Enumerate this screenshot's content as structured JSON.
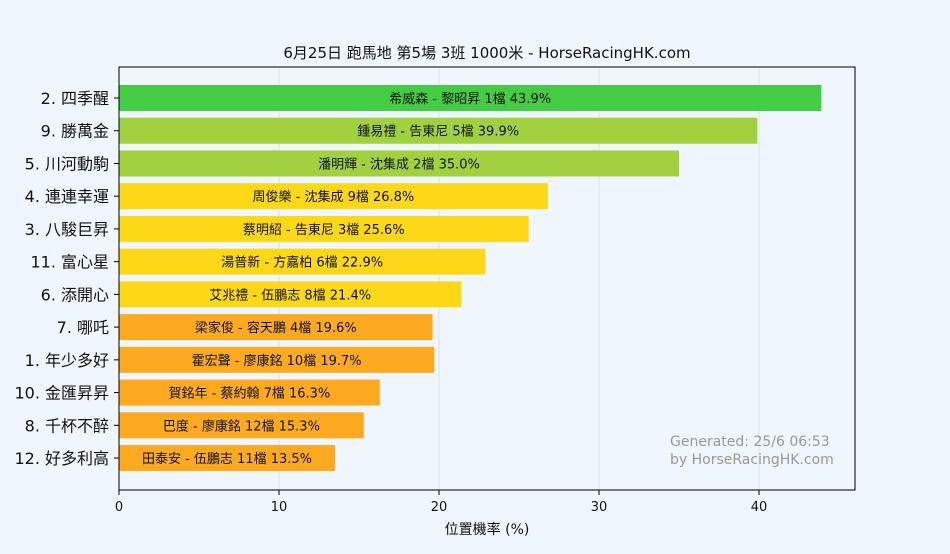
{
  "chart_data": {
    "type": "bar",
    "orientation": "horizontal",
    "title": "6月25日  跑馬地  第5場  3班  1000米 - HorseRacingHK.com",
    "xlabel": "位置機率 (%)",
    "ylabel": "",
    "xlim": [
      0,
      46
    ],
    "xticks": [
      0,
      10,
      20,
      30,
      40
    ],
    "grid": true,
    "categories": [
      "2. 四季醒",
      "9. 勝萬金",
      "5. 川河動駒",
      "4. 連連幸運",
      "3. 八駿巨昇",
      "11. 富心星",
      "6. 添開心",
      "7. 哪吒",
      "1. 年少多好",
      "10. 金匯昇昇",
      "8. 千杯不醉",
      "12. 好多利高"
    ],
    "values": [
      43.9,
      39.9,
      35.0,
      26.8,
      25.6,
      22.9,
      21.4,
      19.6,
      19.7,
      16.3,
      15.3,
      13.5
    ],
    "bar_labels": [
      "希威森 - 黎昭昇 1檔  43.9%",
      "鍾易禮 - 告東尼 5檔  39.9%",
      "潘明輝 - 沈集成 2檔  35.0%",
      "周俊樂 - 沈集成 9檔  26.8%",
      "蔡明紹 - 告東尼 3檔  25.6%",
      "湯普新 - 方嘉柏 6檔  22.9%",
      "艾兆禮 - 伍鵬志 8檔  21.4%",
      "梁家俊 - 容天鵬 4檔  19.6%",
      "霍宏聲 - 廖康銘 10檔  19.7%",
      "賀銘年 - 蔡約翰 7檔  16.3%",
      "巴度 - 廖康銘 12檔  15.3%",
      "田泰安 - 伍鵬志 11檔  13.5%"
    ],
    "bar_colors": [
      "#44cc44",
      "#a2d140",
      "#a2d140",
      "#fcd816",
      "#fcd816",
      "#fcd816",
      "#fcd816",
      "#fdaa20",
      "#fdaa20",
      "#fdaa20",
      "#fdaa20",
      "#fdaa20"
    ],
    "watermark": [
      "Generated: 25/6 06:53",
      "by HorseRacingHK.com"
    ]
  }
}
